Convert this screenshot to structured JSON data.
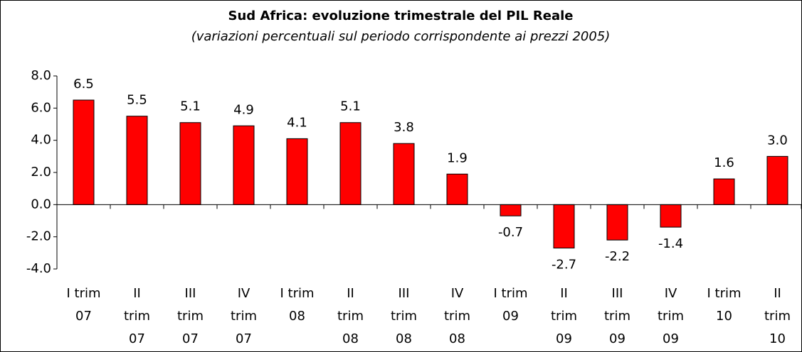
{
  "chart_data": {
    "type": "bar",
    "title": "Sud Africa: evoluzione trimestrale del PIL Reale",
    "subtitle": "(variazioni percentuali sul periodo corrispondente ai prezzi 2005)",
    "categories": [
      "I trim 07",
      "II trim 07",
      "III trim 07",
      "IV trim 07",
      "I trim 08",
      "II trim 08",
      "III trim 08",
      "IV trim 08",
      "I trim 09",
      "II trim 09",
      "III trim 09",
      "IV trim 09",
      "I trim 10",
      "II trim 10"
    ],
    "values": [
      6.5,
      5.5,
      5.1,
      4.9,
      4.1,
      5.1,
      3.8,
      1.9,
      -0.7,
      -2.7,
      -2.2,
      -1.4,
      1.6,
      3.0
    ],
    "value_labels": [
      "6.5",
      "5.5",
      "5.1",
      "4.9",
      "4.1",
      "5.1",
      "3.8",
      "1.9",
      "-0.7",
      "-2.7",
      "-2.2",
      "-1.4",
      "1.6",
      "3.0"
    ],
    "color": "#ff0000",
    "ylim": [
      -4,
      8
    ],
    "yticks": [
      {
        "value": -4,
        "label": "-4.0"
      },
      {
        "value": -2,
        "label": "-2.0"
      },
      {
        "value": 0,
        "label": "0.0"
      },
      {
        "value": 2,
        "label": "2.0"
      },
      {
        "value": 4,
        "label": "4.0"
      },
      {
        "value": 6,
        "label": "6.0"
      },
      {
        "value": 8,
        "label": "8.0"
      }
    ],
    "grid": false
  }
}
